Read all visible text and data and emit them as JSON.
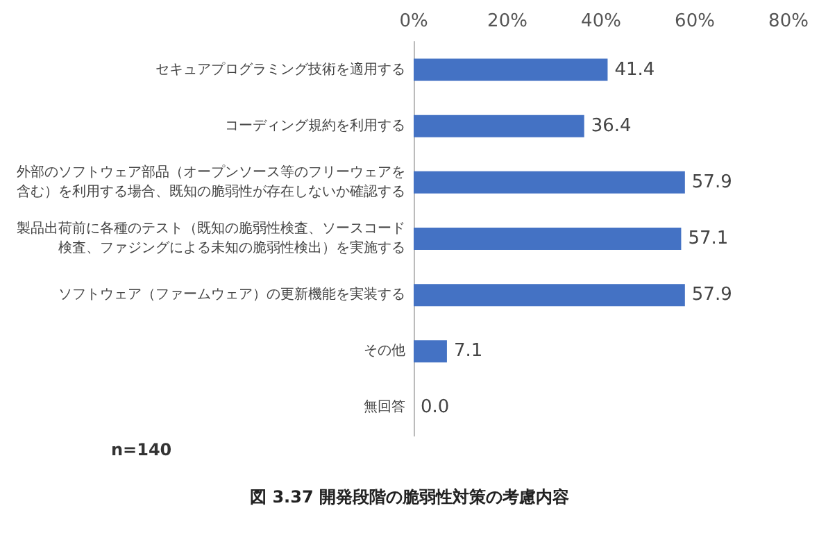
{
  "chart_data": {
    "type": "bar",
    "orientation": "horizontal",
    "title": "図 3.37 開発段階の脆弱性対策の考慮内容",
    "categories": [
      "セキュアプログラミング技術を適用する",
      "コーディング規約を利用する",
      "外部のソフトウェア部品（オープンソース等のフリーウェアを含む）を利用する場合、既知の脆弱性が存在しないか確認する",
      "製品出荷前に各種のテスト（既知の脆弱性検査、ソースコード検査、ファジングによる未知の脆弱性検出）を実施する",
      "ソフトウェア（ファームウェア）の更新機能を実装する",
      "その他",
      "無回答"
    ],
    "values": [
      41.4,
      36.4,
      57.9,
      57.1,
      57.9,
      7.1,
      0.0
    ],
    "value_labels": [
      "41.4",
      "36.4",
      "57.9",
      "57.1",
      "57.9",
      "7.1",
      "0.0"
    ],
    "color": "#4472c4",
    "xlim": [
      0,
      80
    ],
    "xticks": [
      {
        "value": 0,
        "label": "0%"
      },
      {
        "value": 20,
        "label": "20%"
      },
      {
        "value": 40,
        "label": "40%"
      },
      {
        "value": 60,
        "label": "60%"
      },
      {
        "value": 80,
        "label": "80%"
      }
    ],
    "grid": false,
    "annotations": [
      "n=140"
    ]
  }
}
